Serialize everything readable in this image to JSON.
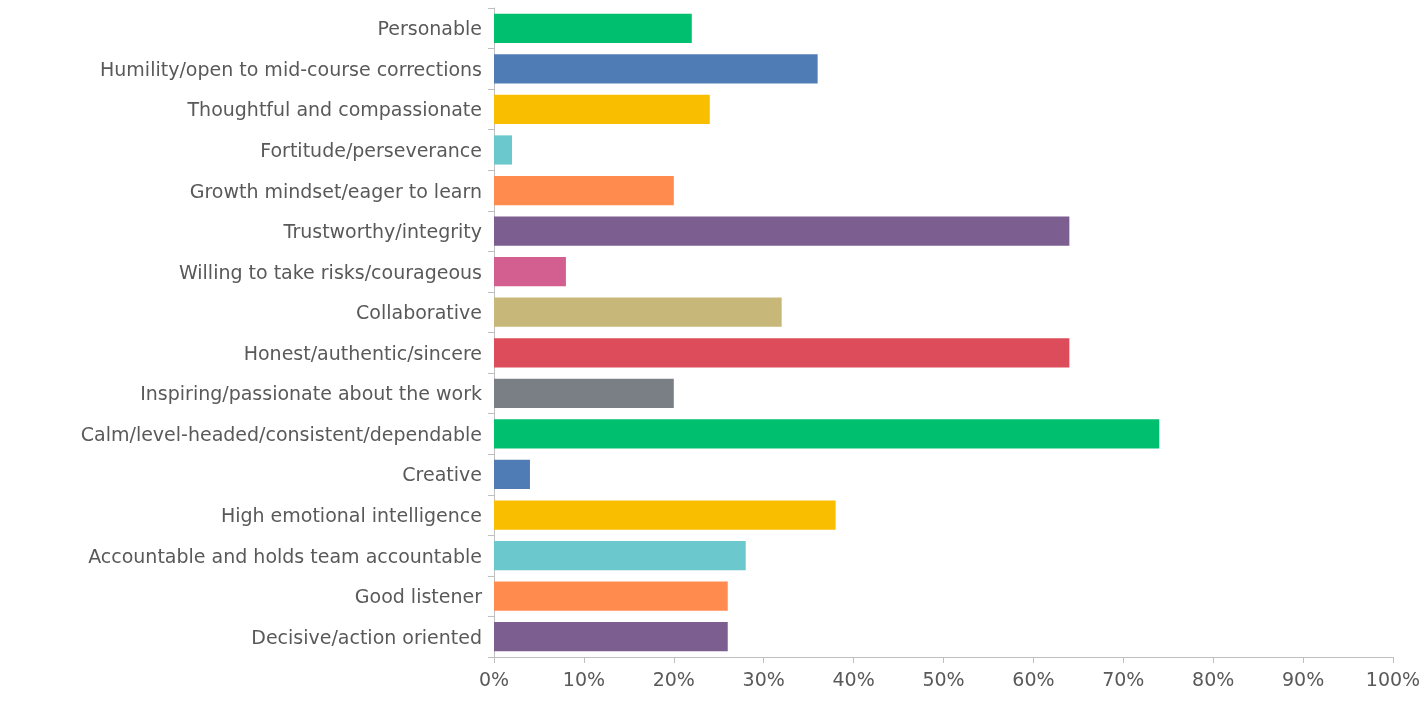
{
  "chart_data": {
    "type": "bar",
    "orientation": "horizontal",
    "categories": [
      "Personable",
      "Humility/open to mid-course corrections",
      "Thoughtful and compassionate",
      "Fortitude/perseverance",
      "Growth mindset/eager to learn",
      "Trustworthy/integrity",
      "Willing to take risks/courageous",
      "Collaborative",
      "Honest/authentic/sincere",
      "Inspiring/passionate about the work",
      "Calm/level-headed/consistent/dependable",
      "Creative",
      "High emotional intelligence",
      "Accountable and holds team accountable",
      "Good listener",
      "Decisive/action oriented"
    ],
    "values": [
      22,
      36,
      24,
      2,
      20,
      64,
      8,
      32,
      64,
      20,
      74,
      4,
      38,
      28,
      26,
      26
    ],
    "colors": [
      "#00bf6f",
      "#507cb6",
      "#f9be00",
      "#6bc8cd",
      "#ff8b4f",
      "#7d5e90",
      "#d25f90",
      "#c7b879",
      "#dc4c5a",
      "#7a7f85",
      "#00bf6f",
      "#507cb6",
      "#f9be00",
      "#6bc8cd",
      "#ff8b4f",
      "#7d5e90"
    ],
    "xlim": [
      0,
      100
    ],
    "xticks": [
      {
        "value": 0,
        "label": "0%"
      },
      {
        "value": 10,
        "label": "10%"
      },
      {
        "value": 20,
        "label": "20%"
      },
      {
        "value": 30,
        "label": "30%"
      },
      {
        "value": 40,
        "label": "40%"
      },
      {
        "value": 50,
        "label": "50%"
      },
      {
        "value": 60,
        "label": "60%"
      },
      {
        "value": 70,
        "label": "70%"
      },
      {
        "value": 80,
        "label": "80%"
      },
      {
        "value": 90,
        "label": "90%"
      },
      {
        "value": 100,
        "label": "100%"
      }
    ],
    "grid": false
  }
}
